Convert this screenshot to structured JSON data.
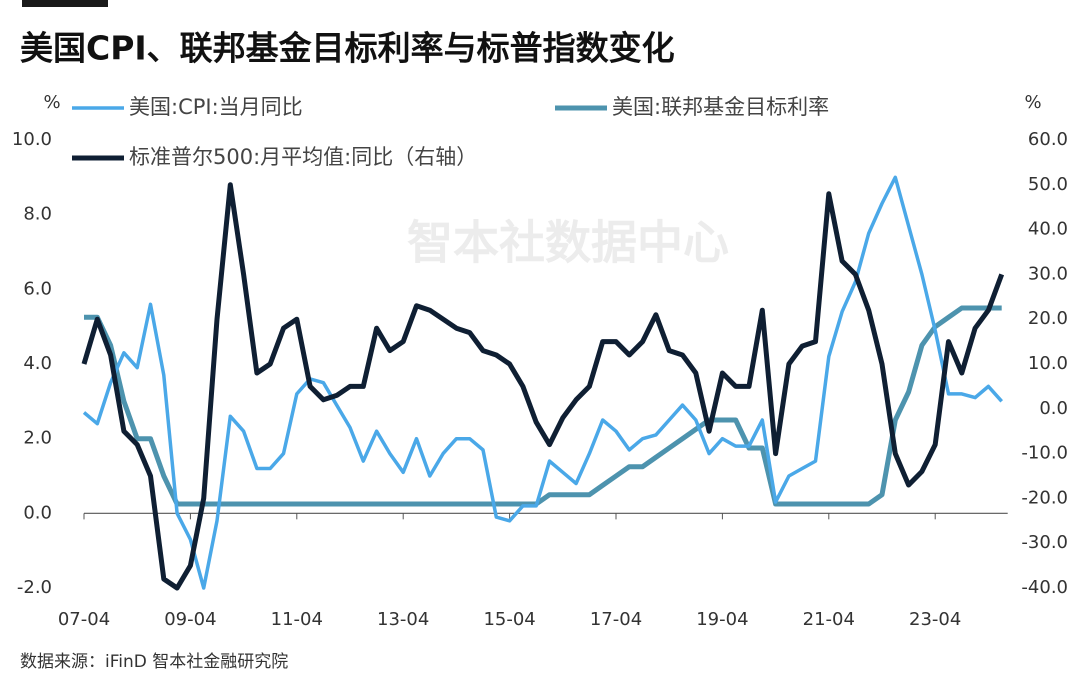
{
  "chart_data": {
    "type": "line",
    "title": "美国CPI、联邦基金目标利率与标普指数变化",
    "watermark": "智本社数据中心",
    "source": "数据来源：iFinD 智本社金融研究院",
    "y_unit": "%",
    "y2_unit": "%",
    "x": [
      "07-04",
      "07-07",
      "07-10",
      "08-01",
      "08-04",
      "08-07",
      "08-10",
      "09-01",
      "09-04",
      "09-07",
      "09-10",
      "10-01",
      "10-04",
      "10-07",
      "10-10",
      "11-01",
      "11-04",
      "11-07",
      "11-10",
      "12-01",
      "12-04",
      "12-07",
      "12-10",
      "13-01",
      "13-04",
      "13-07",
      "13-10",
      "14-01",
      "14-04",
      "14-07",
      "14-10",
      "15-01",
      "15-04",
      "15-07",
      "15-10",
      "16-01",
      "16-04",
      "16-07",
      "16-10",
      "17-01",
      "17-04",
      "17-07",
      "17-10",
      "18-01",
      "18-04",
      "18-07",
      "18-10",
      "19-01",
      "19-04",
      "19-07",
      "19-10",
      "20-01",
      "20-04",
      "20-07",
      "20-10",
      "21-01",
      "21-04",
      "21-07",
      "21-10",
      "22-01",
      "22-04",
      "22-07",
      "22-10",
      "23-01",
      "23-04",
      "23-07",
      "23-10",
      "24-01",
      "24-04",
      "24-07"
    ],
    "series": [
      {
        "name": "美国:CPI:当月同比",
        "color": "#4aa8e8",
        "width": 3.5,
        "values": [
          2.7,
          2.4,
          3.5,
          4.3,
          3.9,
          5.6,
          3.7,
          0.0,
          -0.7,
          -2.0,
          -0.2,
          2.6,
          2.2,
          1.2,
          1.2,
          1.6,
          3.2,
          3.6,
          3.5,
          2.9,
          2.3,
          1.4,
          2.2,
          1.6,
          1.1,
          2.0,
          1.0,
          1.6,
          2.0,
          2.0,
          1.7,
          -0.1,
          -0.2,
          0.2,
          0.2,
          1.4,
          1.1,
          0.8,
          1.6,
          2.5,
          2.2,
          1.7,
          2.0,
          2.1,
          2.5,
          2.9,
          2.5,
          1.6,
          2.0,
          1.8,
          1.8,
          2.5,
          0.3,
          1.0,
          1.2,
          1.4,
          4.2,
          5.4,
          6.2,
          7.5,
          8.3,
          9.0,
          7.7,
          6.4,
          4.9,
          3.2,
          3.2,
          3.1,
          3.4,
          3.0
        ]
      },
      {
        "name": "美国:联邦基金目标利率",
        "color": "#4d93ae",
        "width": 5,
        "values": [
          5.25,
          5.25,
          4.5,
          3.0,
          2.0,
          2.0,
          1.0,
          0.25,
          0.25,
          0.25,
          0.25,
          0.25,
          0.25,
          0.25,
          0.25,
          0.25,
          0.25,
          0.25,
          0.25,
          0.25,
          0.25,
          0.25,
          0.25,
          0.25,
          0.25,
          0.25,
          0.25,
          0.25,
          0.25,
          0.25,
          0.25,
          0.25,
          0.25,
          0.25,
          0.25,
          0.5,
          0.5,
          0.5,
          0.5,
          0.75,
          1.0,
          1.25,
          1.25,
          1.5,
          1.75,
          2.0,
          2.25,
          2.5,
          2.5,
          2.5,
          1.75,
          1.75,
          0.25,
          0.25,
          0.25,
          0.25,
          0.25,
          0.25,
          0.25,
          0.25,
          0.5,
          2.5,
          3.25,
          4.5,
          5.0,
          5.25,
          5.5,
          5.5,
          5.5,
          5.5
        ]
      },
      {
        "name": "标准普尔500:月平均值:同比（右轴）",
        "color": "#0f1f33",
        "width": 5,
        "axis": "y2",
        "values": [
          10,
          20,
          12,
          -5,
          -8,
          -15,
          -38,
          -40,
          -35,
          -20,
          20,
          50,
          30,
          8,
          10,
          18,
          20,
          5,
          2,
          3,
          5,
          5,
          18,
          13,
          15,
          23,
          22,
          20,
          18,
          17,
          13,
          12,
          10,
          5,
          -3,
          -8,
          -2,
          2,
          5,
          15,
          15,
          12,
          15,
          21,
          13,
          12,
          8,
          -5,
          8,
          5,
          5,
          22,
          -10,
          10,
          14,
          15,
          48,
          33,
          30,
          22,
          10,
          -10,
          -17,
          -14,
          -8,
          15,
          8,
          18,
          22,
          30
        ]
      }
    ],
    "ylim": [
      -2,
      10
    ],
    "yticks": [
      {
        "value": -2,
        "label": "-2.0"
      },
      {
        "value": 0,
        "label": "0.0"
      },
      {
        "value": 2,
        "label": "2.0"
      },
      {
        "value": 4,
        "label": "4.0"
      },
      {
        "value": 6,
        "label": "6.0"
      },
      {
        "value": 8,
        "label": "8.0"
      },
      {
        "value": 10,
        "label": "10.0"
      }
    ],
    "y2lim": [
      -40,
      60
    ],
    "y2ticks": [
      {
        "value": -40,
        "label": "-40.0"
      },
      {
        "value": -30,
        "label": "-30.0"
      },
      {
        "value": -20,
        "label": "-20.0"
      },
      {
        "value": -10,
        "label": "-10.0"
      },
      {
        "value": 0,
        "label": "0.0"
      },
      {
        "value": 10,
        "label": "10.0"
      },
      {
        "value": 20,
        "label": "20.0"
      },
      {
        "value": 30,
        "label": "30.0"
      },
      {
        "value": 40,
        "label": "40.0"
      },
      {
        "value": 50,
        "label": "50.0"
      },
      {
        "value": 60,
        "label": "60.0"
      }
    ],
    "grid": false
  }
}
